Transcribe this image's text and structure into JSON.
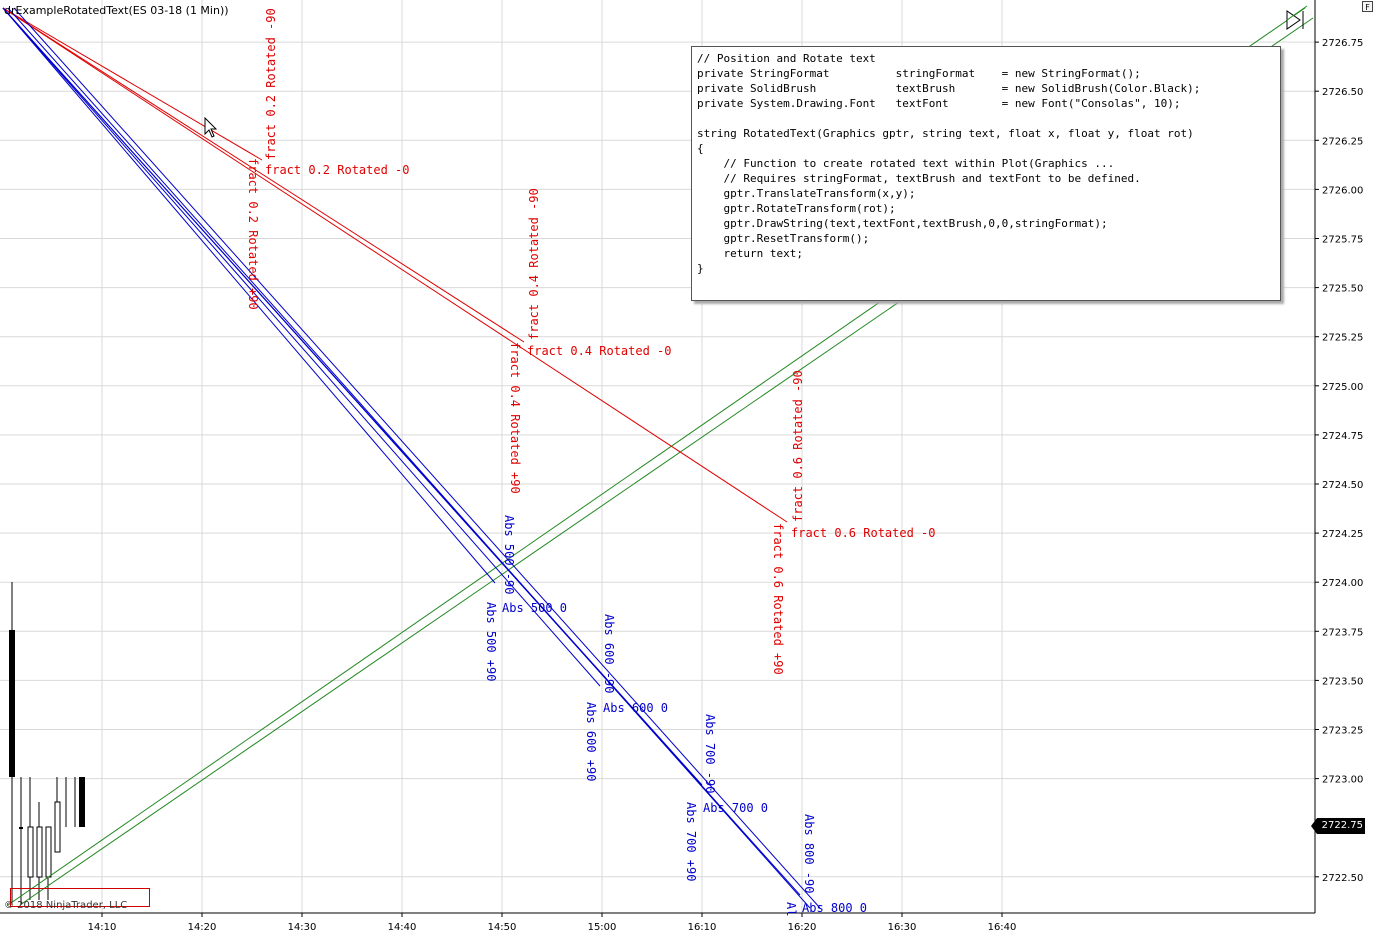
{
  "chart": {
    "title": "drExampleRotatedText(ES 03-18 (1 Min))",
    "copyright": "© 2018 NinjaTrader, LLC",
    "f_button": "F",
    "current_price": "2722.75",
    "y_ticks": [
      "2726.75",
      "2726.50",
      "2726.25",
      "2726.00",
      "2725.75",
      "2725.50",
      "2725.25",
      "2725.00",
      "2724.75",
      "2724.50",
      "2724.25",
      "2724.00",
      "2723.75",
      "2723.50",
      "2723.25",
      "2723.00",
      "2722.50"
    ],
    "x_ticks": [
      "14:10",
      "14:20",
      "14:30",
      "14:40",
      "14:50",
      "15:00",
      "16:10",
      "16:20",
      "16:30",
      "16:40"
    ],
    "colors": {
      "red": "#e00000",
      "blue": "#0000cc",
      "green": "#228822",
      "grid": "#d9d9d9"
    }
  },
  "red_labels": {
    "f02_rot0": "fract 0.2 Rotated -0",
    "f02_rotm90": "fract 0.2 Rotated -90",
    "f02_rotp90": "fract 0.2 Rotated +90",
    "f04_rot0": "fract 0.4 Rotated -0",
    "f04_rotm90": "fract 0.4 Rotated -90",
    "f04_rotp90": "fract 0.4 Rotated +90",
    "f06_rot0": "fract 0.6 Rotated -0",
    "f06_rotm90": "fract 0.6 Rotated -90",
    "f06_rotp90": "fract 0.6 Rotated +90"
  },
  "blue_labels": {
    "a500_0": "Abs 500 0",
    "a500_m90": "Abs 500 -90",
    "a500_p90": "Abs 500 +90",
    "a600_0": "Abs 600 0",
    "a600_m90": "Abs 600 -90",
    "a600_p90": "Abs 600 +90",
    "a700_0": "Abs 700 0",
    "a700_m90": "Abs 700 -90",
    "a700_p90": "Abs 700 +90",
    "a800_0": "Abs 800 0",
    "a800_m90": "Abs 800 -90",
    "a800_p90": "Al"
  },
  "code_text": "// Position and Rotate text\nprivate StringFormat          stringFormat    = new StringFormat();\nprivate SolidBrush            textBrush       = new SolidBrush(Color.Black);\nprivate System.Drawing.Font   textFont        = new Font(\"Consolas\", 10);\n\nstring RotatedText(Graphics gptr, string text, float x, float y, float rot)\n{\n    // Function to create rotated text within Plot(Graphics ...\n    // Requires stringFormat, textBrush and textFont to be defined.\n    gptr.TranslateTransform(x,y);\n    gptr.RotateTransform(rot);\n    gptr.DrawString(text,textFont,textBrush,0,0,stringFormat);\n    gptr.ResetTransform();\n    return text;\n}"
}
